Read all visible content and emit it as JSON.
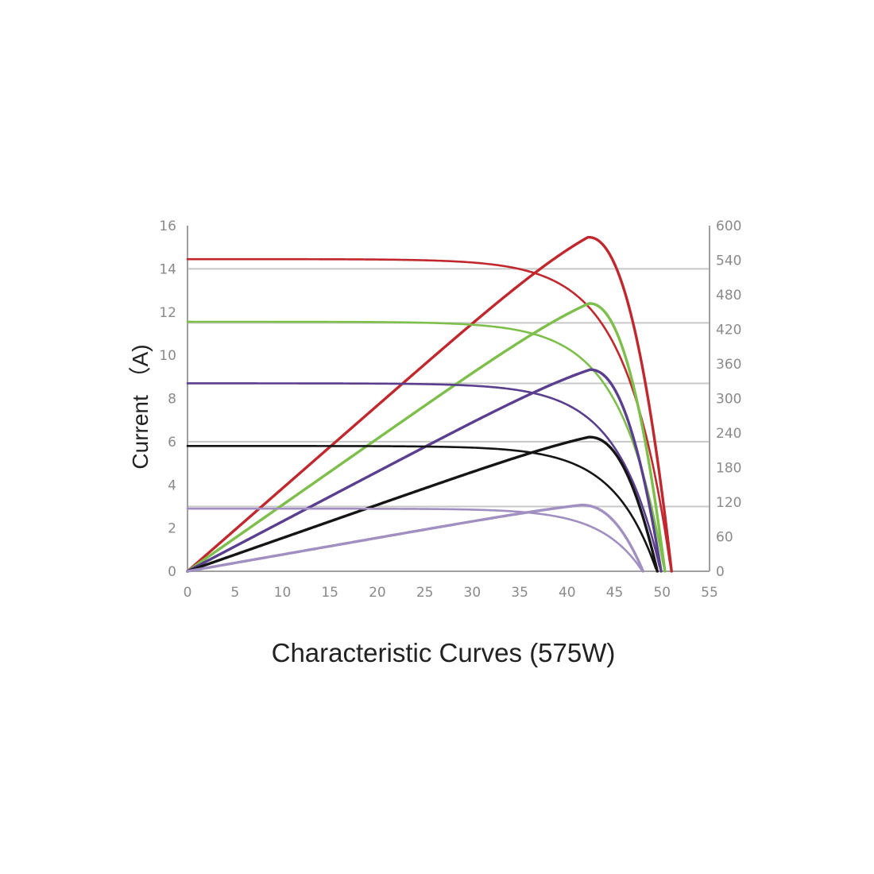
{
  "chart_data": {
    "type": "line",
    "caption": "Characteristic Curves (575W)",
    "ylabel": "Current （A)",
    "xlim": [
      0,
      55
    ],
    "ylim_left": [
      0,
      16
    ],
    "ylim_right": [
      0,
      600
    ],
    "x_ticks": [
      "0",
      "5",
      "10",
      "15",
      "20",
      "25",
      "30",
      "35",
      "40",
      "45",
      "50",
      "55"
    ],
    "y_left_ticks": [
      "0",
      "2",
      "4",
      "6",
      "8",
      "10",
      "12",
      "14",
      "16"
    ],
    "y_right_ticks": [
      "0",
      "60",
      "120",
      "180",
      "240",
      "300",
      "360",
      "420",
      "480",
      "540",
      "600"
    ],
    "grid_lines_left_units": [
      3,
      6,
      8.7,
      11.5,
      14
    ],
    "grid": true,
    "series": [
      {
        "color": "#c0282e",
        "iv": {
          "isc": 14.45,
          "voc": 51.0,
          "vmp": 42.0,
          "imp": 13.7
        },
        "power": {
          "pmax": 580,
          "vmp": 42.2,
          "voc": 51.0
        }
      },
      {
        "color": "#7dbf4a",
        "iv": {
          "isc": 11.55,
          "voc": 50.3,
          "vmp": 42.0,
          "imp": 10.95
        },
        "power": {
          "pmax": 465,
          "vmp": 42.3,
          "voc": 50.3
        }
      },
      {
        "color": "#5a3f8e",
        "iv": {
          "isc": 8.7,
          "voc": 49.9,
          "vmp": 42.0,
          "imp": 8.2
        },
        "power": {
          "pmax": 350,
          "vmp": 42.4,
          "voc": 49.9
        }
      },
      {
        "color": "#151515",
        "iv": {
          "isc": 5.8,
          "voc": 49.5,
          "vmp": 42.0,
          "imp": 5.4
        },
        "power": {
          "pmax": 233,
          "vmp": 42.3,
          "voc": 49.5
        }
      },
      {
        "color": "#a08fc0",
        "iv": {
          "isc": 2.9,
          "voc": 48.0,
          "vmp": 41.0,
          "imp": 2.7
        },
        "power": {
          "pmax": 115,
          "vmp": 41.5,
          "voc": 48.0
        }
      }
    ]
  }
}
